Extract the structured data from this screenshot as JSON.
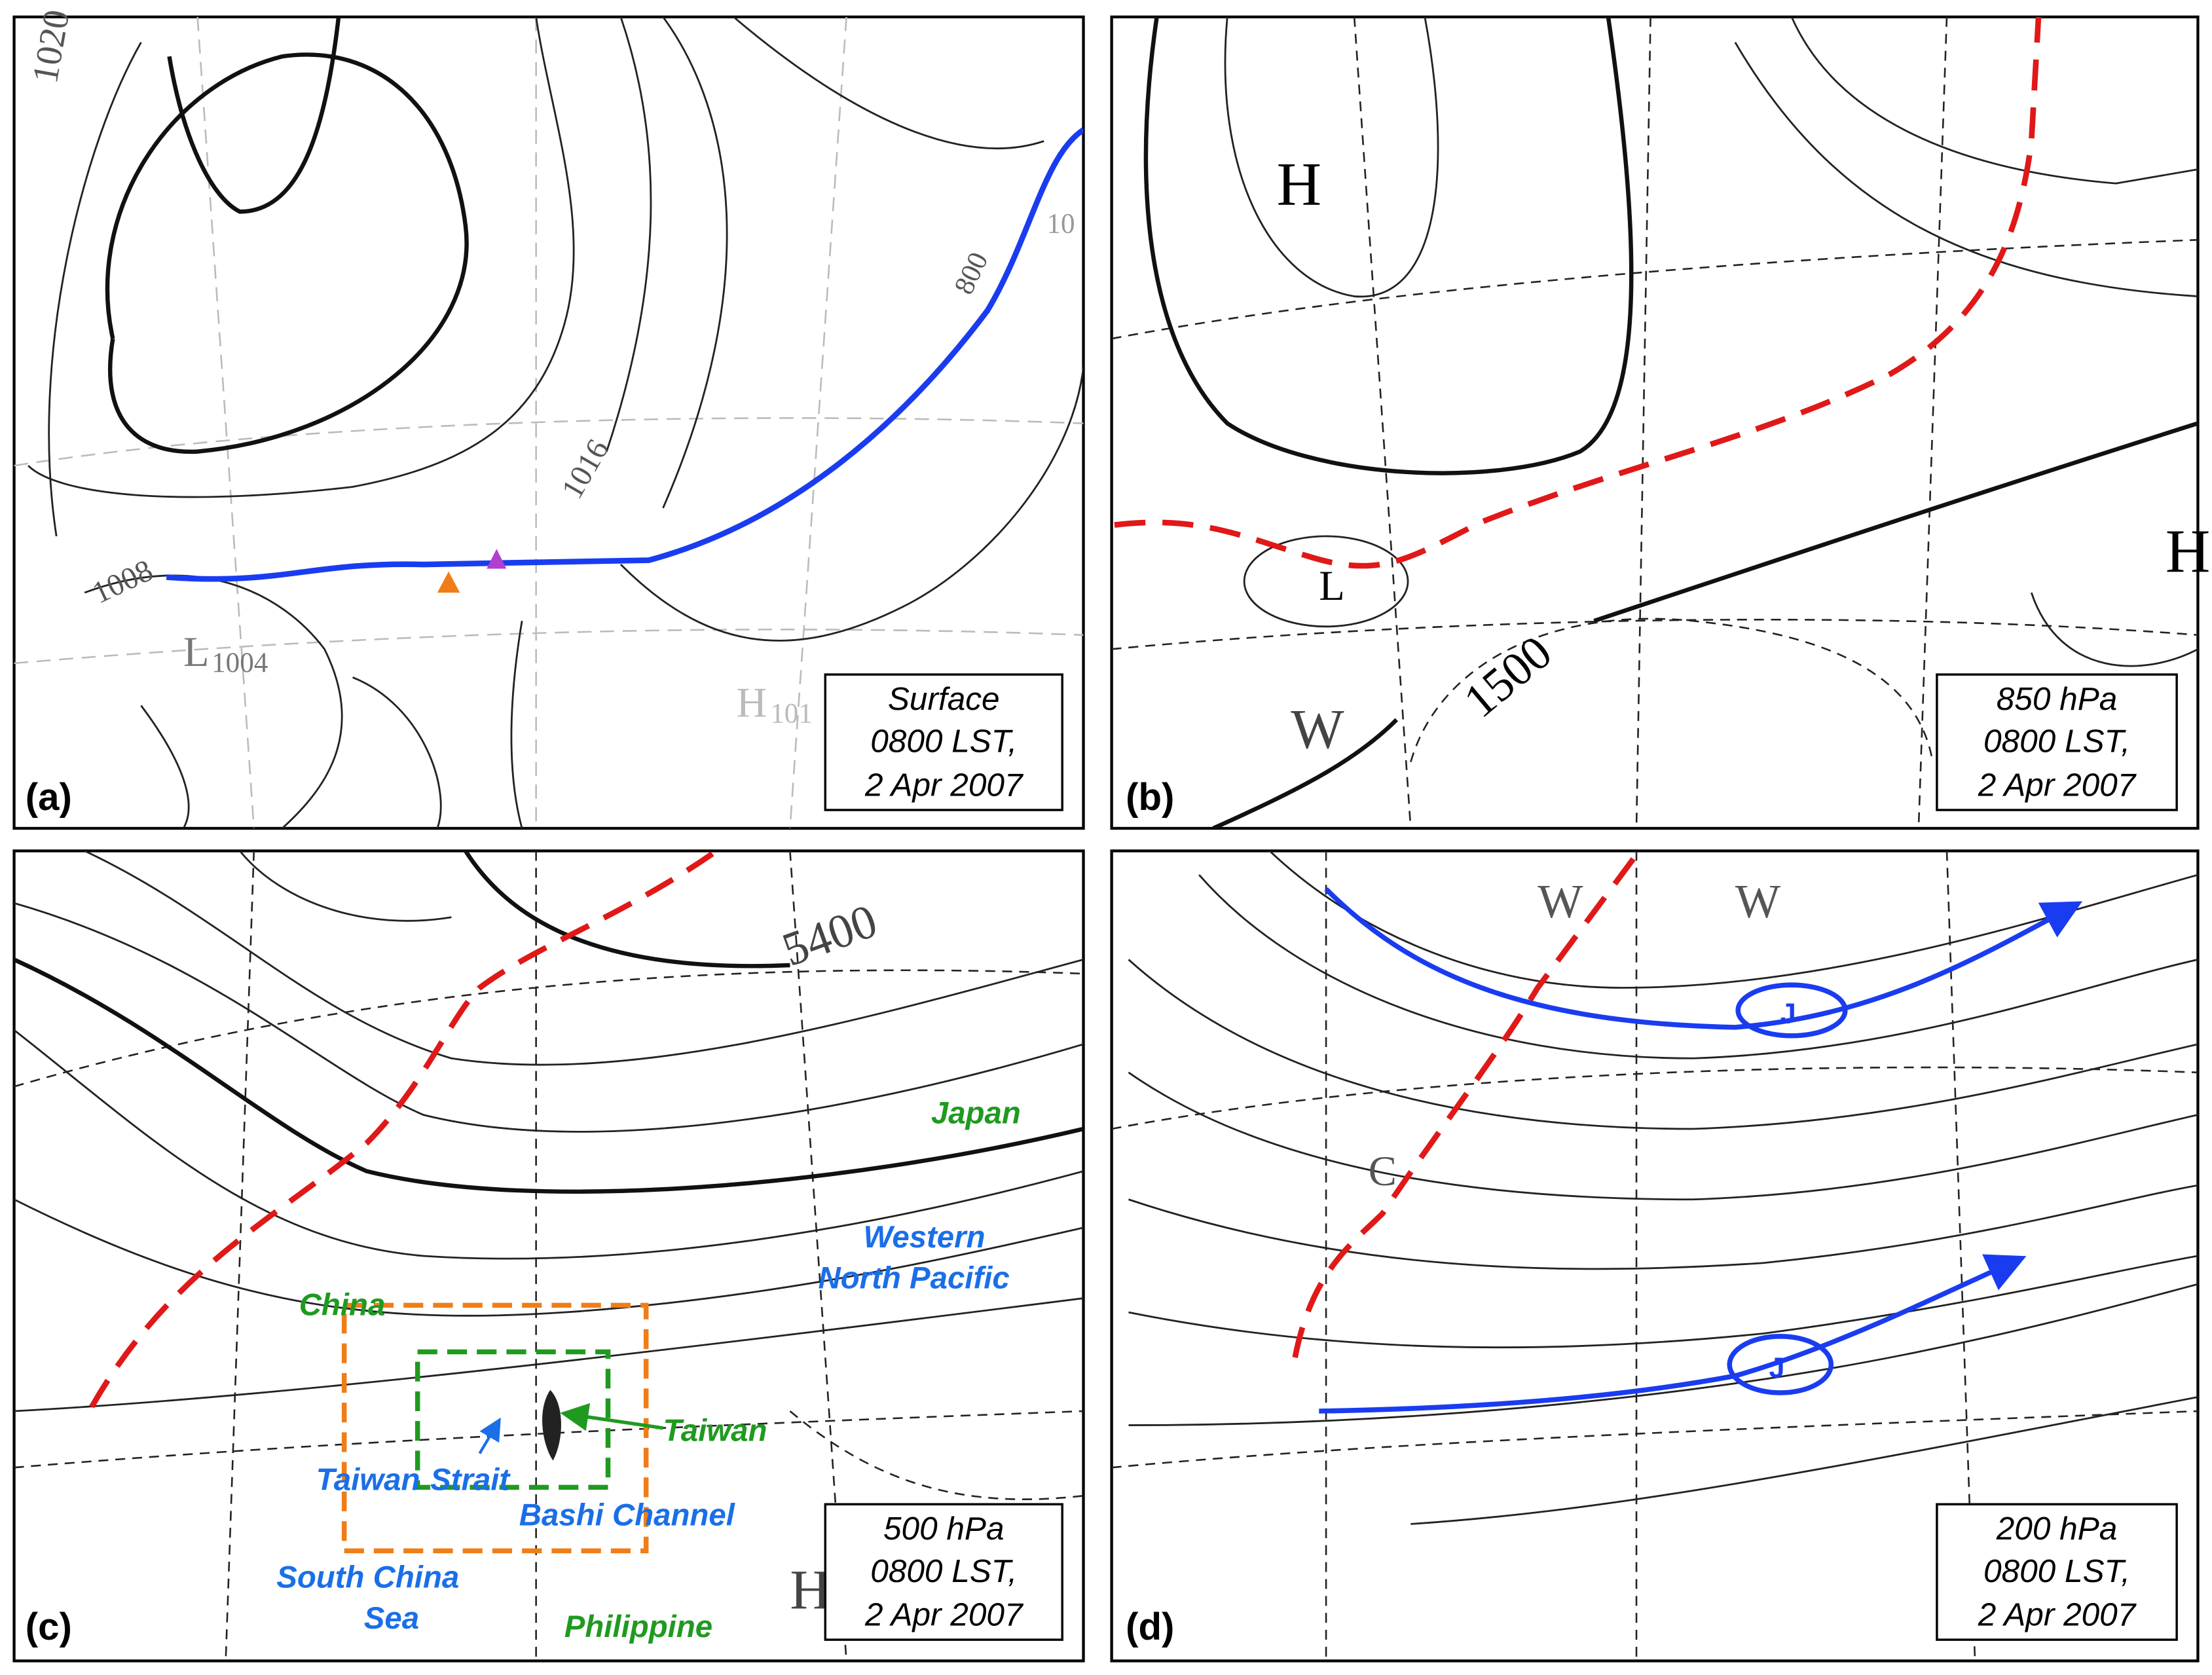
{
  "panels": [
    {
      "label": "(a)",
      "caption": [
        "Surface",
        "0800 LST,",
        "2 Apr 2007"
      ],
      "map_labels": [
        "1020",
        "1016",
        "1008",
        "L",
        "1004",
        "H",
        "101",
        "800",
        "10"
      ]
    },
    {
      "label": "(b)",
      "caption": [
        "850 hPa",
        "0800 LST,",
        "2 Apr 2007"
      ],
      "map_labels": [
        "H",
        "L",
        "W",
        "1500",
        "H"
      ]
    },
    {
      "label": "(c)",
      "caption": [
        "500 hPa",
        "0800 LST,",
        "2 Apr 2007"
      ],
      "map_labels": [
        "5400",
        "Japan",
        "Western",
        "North Pacific",
        "China",
        "Taiwan",
        "Taiwan",
        "Strait",
        "Bashi Channel",
        "South China",
        "Sea",
        "Philippine",
        "H"
      ]
    },
    {
      "label": "(d)",
      "caption": [
        "200 hPa",
        "0800 LST,",
        "2 Apr 2007"
      ],
      "map_labels": [
        "W",
        "W",
        "J",
        "J",
        "C"
      ]
    }
  ]
}
